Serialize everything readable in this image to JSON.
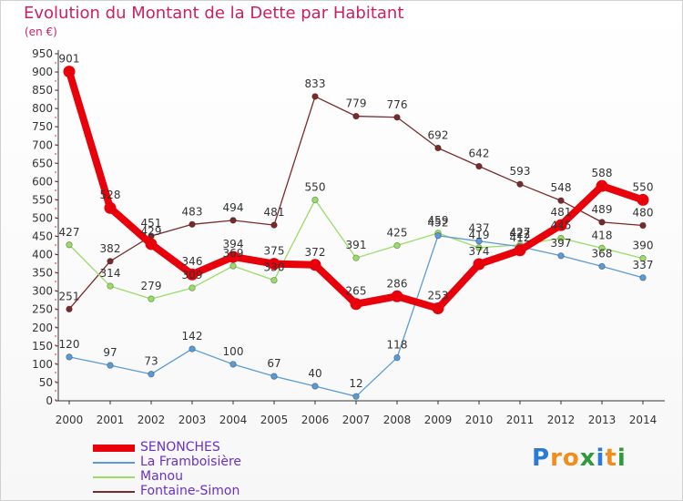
{
  "header": {
    "title": "Evolution du Montant de la Dette par Habitant",
    "subtitle": "(en €)"
  },
  "logo": {
    "letters": [
      "P",
      "r",
      "o",
      "x",
      "i",
      "t",
      "i"
    ],
    "colors": [
      "#2b7bd6",
      "#f28c1a",
      "#f28c1a",
      "#2f9a3c",
      "#2b7bd6",
      "#f28c1a",
      "#2f9a3c"
    ]
  },
  "chart_data": {
    "type": "line",
    "title": "Evolution du Montant de la Dette par Habitant",
    "subtitle": "(en €)",
    "x": [
      "2000",
      "2001",
      "2002",
      "2003",
      "2004",
      "2005",
      "2006",
      "2007",
      "2008",
      "2009",
      "2010",
      "2011",
      "2012",
      "2013",
      "2014"
    ],
    "y_ticks": [
      0,
      50,
      100,
      150,
      200,
      250,
      300,
      350,
      400,
      450,
      500,
      550,
      600,
      650,
      700,
      750,
      800,
      850,
      900,
      950
    ],
    "ylim": [
      0,
      950
    ],
    "grid": false,
    "legend_position": "bottom-left",
    "series": [
      {
        "name": "SENONCHES",
        "color": "#e8000b",
        "emphasis": true,
        "values": [
          901,
          528,
          429,
          346,
          394,
          375,
          372,
          265,
          286,
          253,
          374,
          412,
          481,
          588,
          550
        ]
      },
      {
        "name": "La Framboisière",
        "color": "#5b9bd5",
        "values": [
          120,
          97,
          73,
          142,
          100,
          67,
          40,
          12,
          118,
          452,
          437,
          422,
          397,
          368,
          337
        ]
      },
      {
        "name": "Manou",
        "color": "#99dd66",
        "values": [
          427,
          314,
          279,
          309,
          369,
          330,
          550,
          391,
          425,
          459,
          419,
          427,
          445,
          418,
          390
        ]
      },
      {
        "name": "Fontaine-Simon",
        "color": "#7a2a2a",
        "values": [
          251,
          382,
          451,
          483,
          494,
          481,
          833,
          779,
          776,
          692,
          642,
          593,
          548,
          489,
          480
        ]
      }
    ]
  }
}
